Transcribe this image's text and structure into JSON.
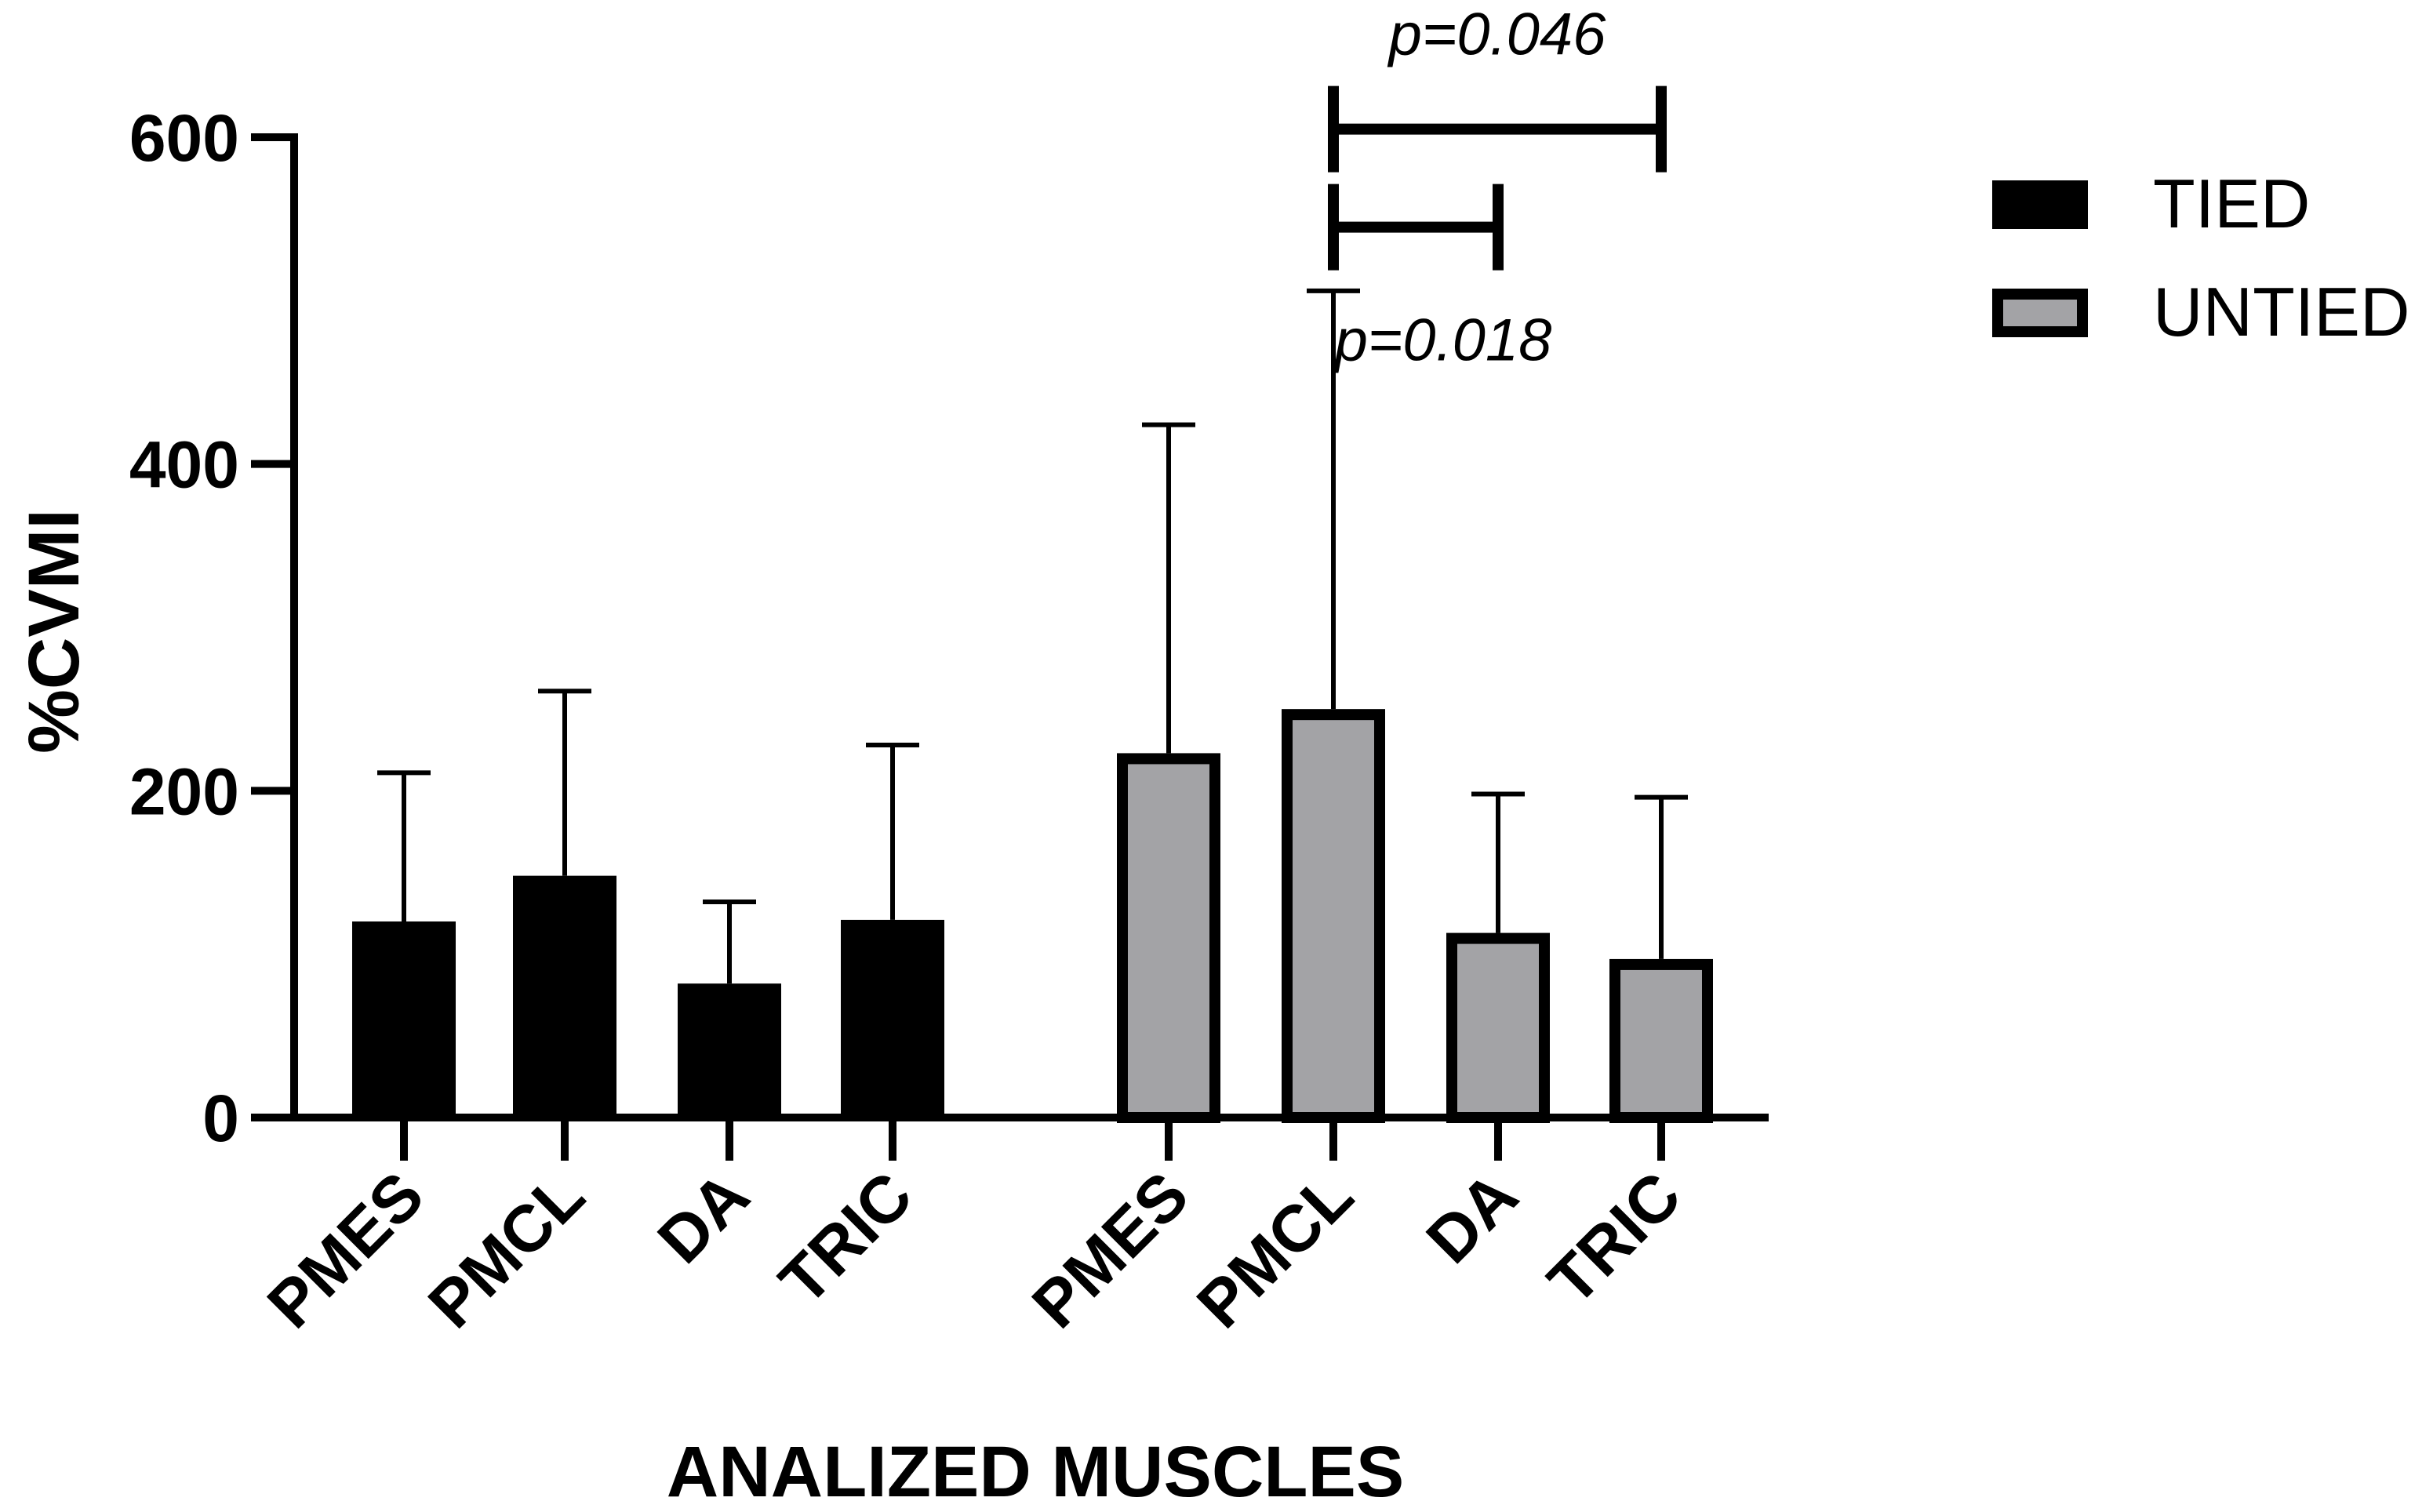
{
  "chart_data": {
    "type": "bar",
    "title": "",
    "xlabel": "ANALIZED MUSCLES",
    "ylabel": "%CVMI",
    "ylim": [
      0,
      600
    ],
    "yticks": [
      0,
      200,
      400,
      600
    ],
    "grid": false,
    "legend_position": "top-right",
    "colors": {
      "TIED": "#000000",
      "UNTIED": "#a3a3a6",
      "axis": "#000000"
    },
    "series": [
      {
        "name": "TIED",
        "categories": [
          "PMES",
          "PMCL",
          "DA",
          "TRIC"
        ],
        "values": [
          120,
          148,
          82,
          121
        ],
        "error_upper": [
          211,
          261,
          132,
          228
        ]
      },
      {
        "name": "UNTIED",
        "categories": [
          "PMES",
          "PMCL",
          "DA",
          "TRIC"
        ],
        "values": [
          223,
          250,
          113,
          97
        ],
        "error_upper": [
          424,
          506,
          198,
          196
        ]
      }
    ],
    "annotations": [
      {
        "text": "p=0.046",
        "from": "UNTIED PMCL",
        "to": "UNTIED TRIC",
        "bracket_y": 605
      },
      {
        "text": "p=0.018",
        "from": "UNTIED PMCL",
        "to": "UNTIED DA",
        "bracket_y": 545
      }
    ]
  }
}
